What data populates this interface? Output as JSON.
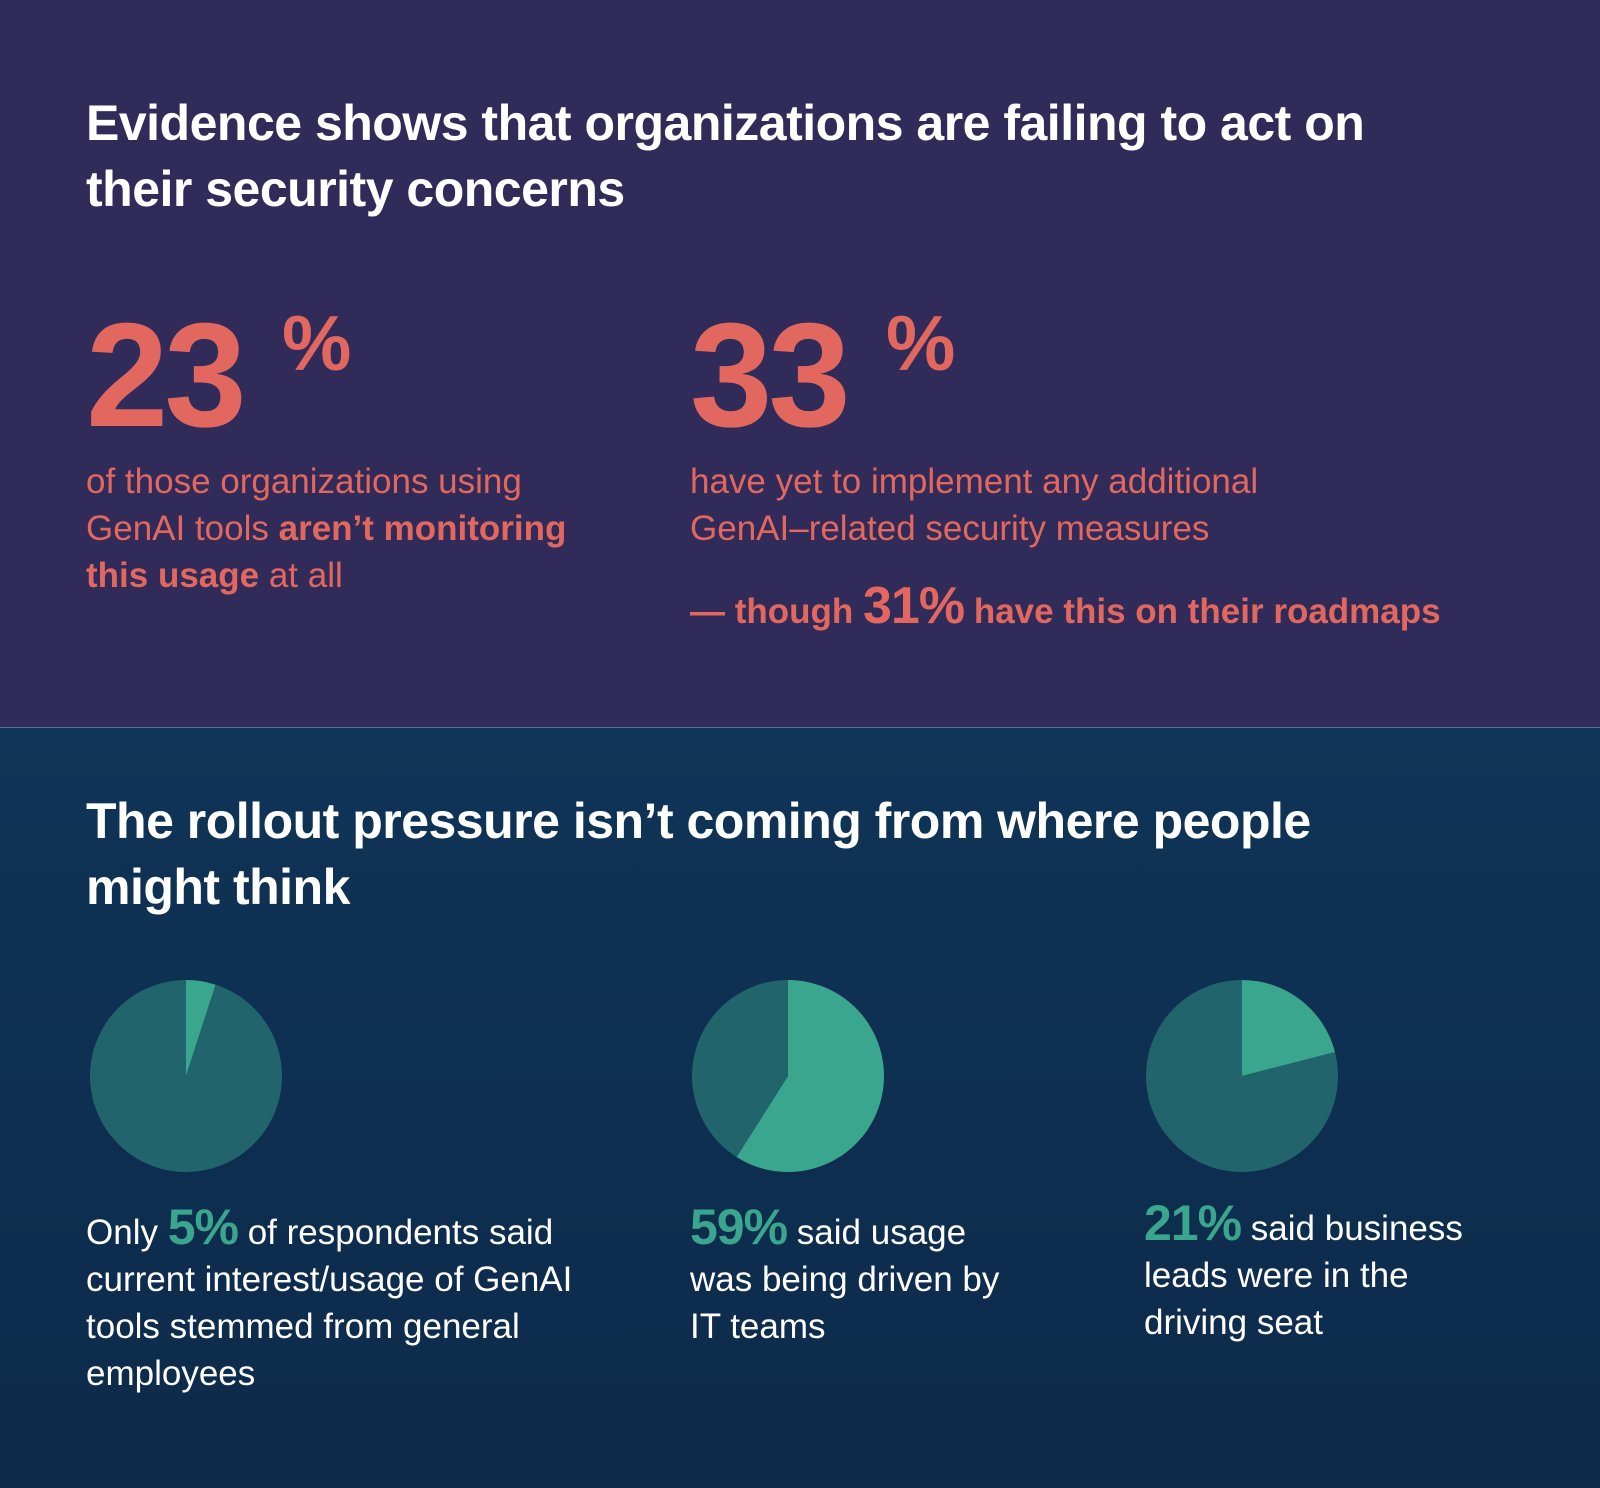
{
  "section1": {
    "heading": "Evidence shows that organizations are failing to act on their security concerns",
    "stat_left": {
      "value": "23",
      "pct": "%",
      "text_a": "of those organizations using GenAI tools ",
      "text_bold": "aren’t monitoring this usage",
      "text_b": " at all"
    },
    "stat_right": {
      "value": "33",
      "pct": "%",
      "text": "have yet to implement any additional GenAI–related security measures",
      "roadmap_a": "— though ",
      "roadmap_pct": "31%",
      "roadmap_b": " have this on their roadmaps"
    }
  },
  "section2": {
    "heading": "The rollout pressure isn’t coming from where people might think",
    "captions": [
      {
        "pre": "Only ",
        "hl": "5%",
        "post": " of respondents said current interest/usage of GenAI tools stemmed from general employees"
      },
      {
        "pre": "",
        "hl": "59%",
        "post": " said usage was being driven by IT teams"
      },
      {
        "pre": "",
        "hl": "21%",
        "post": " said business leads were in the driving seat"
      }
    ]
  },
  "colors": {
    "top_bg": "#312b59",
    "bottom_bg": "#0f3457",
    "accent_coral": "#e2685f",
    "pie_highlight": "#3aa68e",
    "pie_base": "#22646b"
  },
  "chart_data": [
    {
      "type": "pie",
      "slices": [
        {
          "value": 5
        },
        {
          "value": 95
        }
      ]
    },
    {
      "type": "pie",
      "slices": [
        {
          "value": 59
        },
        {
          "value": 41
        }
      ]
    },
    {
      "type": "pie",
      "slices": [
        {
          "value": 21
        },
        {
          "value": 79
        }
      ]
    }
  ]
}
